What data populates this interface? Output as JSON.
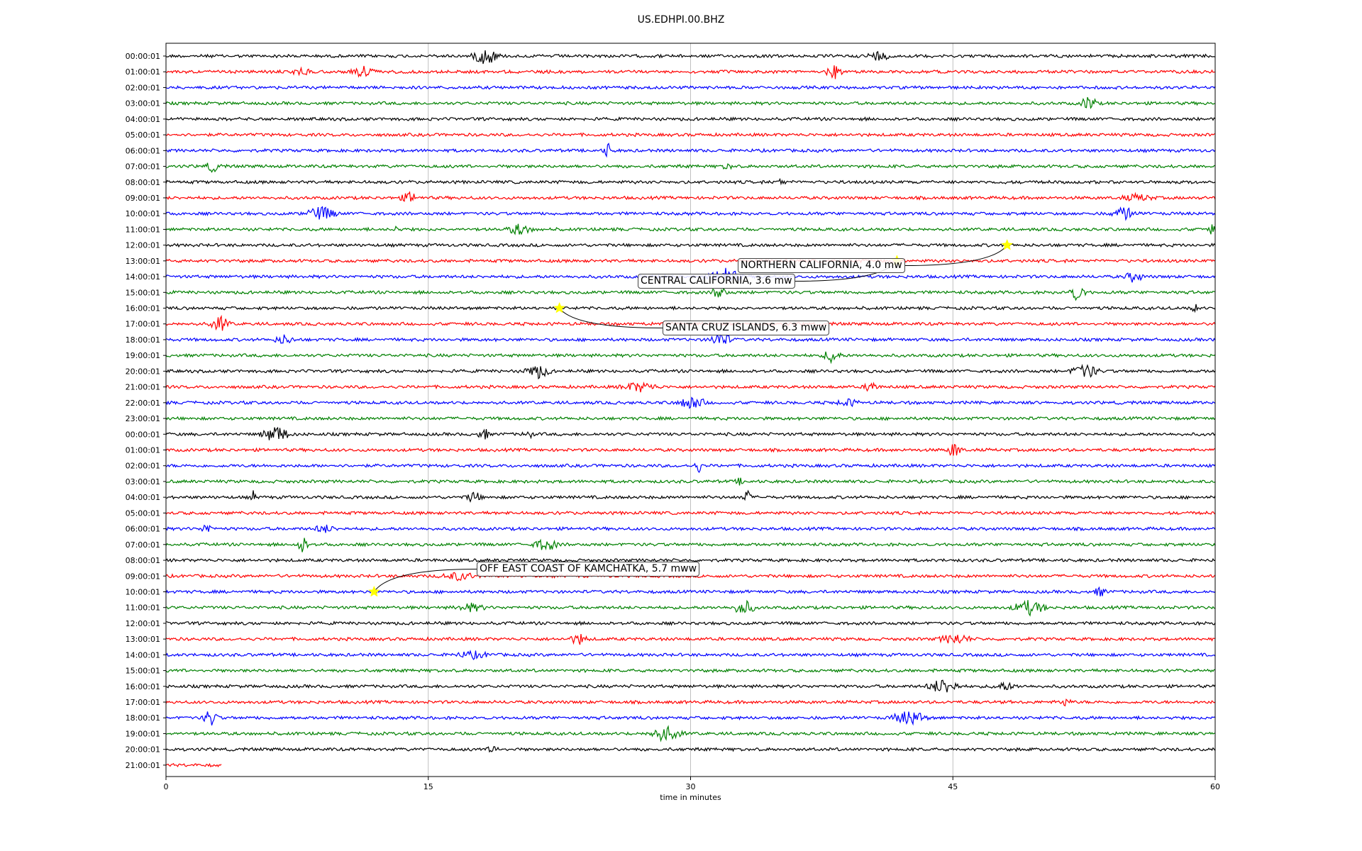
{
  "chart_data": {
    "type": "line",
    "title": "US.EDHPI.00.BHZ",
    "xlabel": "time in minutes",
    "ylabel": "",
    "xlim": [
      0,
      60
    ],
    "x_ticks": [
      0,
      15,
      30,
      45,
      60
    ],
    "grid": "vertical",
    "row_labels": [
      "00:00:01",
      "01:00:01",
      "02:00:01",
      "03:00:01",
      "04:00:01",
      "05:00:01",
      "06:00:01",
      "07:00:01",
      "08:00:01",
      "09:00:01",
      "10:00:01",
      "11:00:01",
      "12:00:01",
      "13:00:01",
      "14:00:01",
      "15:00:01",
      "16:00:01",
      "17:00:01",
      "18:00:01",
      "19:00:01",
      "20:00:01",
      "21:00:01",
      "22:00:01",
      "23:00:01",
      "00:00:01",
      "01:00:01",
      "02:00:01",
      "03:00:01",
      "04:00:01",
      "05:00:01",
      "06:00:01",
      "07:00:01",
      "08:00:01",
      "09:00:01",
      "10:00:01",
      "11:00:01",
      "12:00:01",
      "13:00:01",
      "14:00:01",
      "15:00:01",
      "16:00:01",
      "17:00:01",
      "18:00:01",
      "19:00:01",
      "20:00:01",
      "21:00:01"
    ],
    "trace_colors": [
      "#000000",
      "#ff0000",
      "#0000ff",
      "#008000"
    ],
    "last_row_end_minute": 3.2,
    "events": [
      {
        "label": "NORTHERN CALIFORNIA, 4.0 mw",
        "row": 12,
        "minute": 48.1
      },
      {
        "label": "CENTRAL CALIFORNIA, 3.6 mw",
        "row": 13,
        "minute": 41.8
      },
      {
        "label": "SANTA CRUZ ISLANDS, 6.3 mww",
        "row": 16,
        "minute": 22.5
      },
      {
        "label": "OFF EAST COAST OF KAMCHATKA, 5.7 mww",
        "row": 34,
        "minute": 11.9
      }
    ]
  },
  "colors": {
    "star": "#ffff00",
    "grid": "#b0b0b0"
  }
}
